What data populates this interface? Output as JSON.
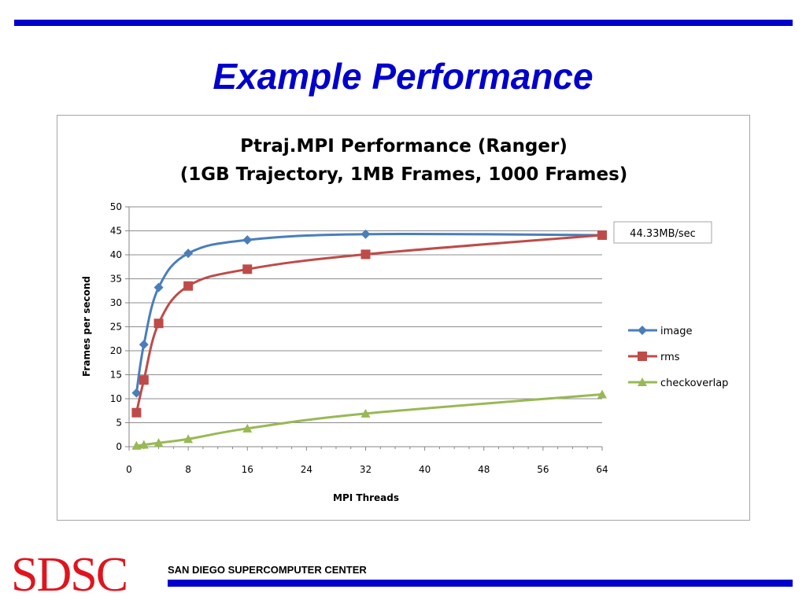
{
  "slide": {
    "title": "Example Performance",
    "footer_logo": "SDSC",
    "footer_org": "SAN DIEGO SUPERCOMPUTER CENTER",
    "accent_color": "#0000cc",
    "logo_color": "#e0141e"
  },
  "chart_data": {
    "type": "line",
    "title": "Ptraj.MPI Performance (Ranger)",
    "subtitle": "(1GB Trajectory, 1MB Frames, 1000 Frames)",
    "xlabel": "MPI Threads",
    "ylabel": "Frames per second",
    "xlim": [
      0,
      64
    ],
    "ylim": [
      0,
      50
    ],
    "xticks": [
      0,
      8,
      16,
      24,
      32,
      40,
      48,
      56,
      64
    ],
    "yticks": [
      0,
      5,
      10,
      15,
      20,
      25,
      30,
      35,
      40,
      45,
      50
    ],
    "grid": "horizontal",
    "legend_position": "right",
    "series": [
      {
        "name": "image",
        "color": "#4a7ebb",
        "marker": "diamond",
        "x": [
          1,
          2,
          4,
          8,
          16,
          32,
          64
        ],
        "y": [
          11.2,
          21.3,
          33.2,
          40.3,
          43.1,
          44.3,
          44.1
        ]
      },
      {
        "name": "rms",
        "color": "#be4b48",
        "marker": "square",
        "x": [
          1,
          2,
          4,
          8,
          16,
          32,
          64
        ],
        "y": [
          7.1,
          13.9,
          25.7,
          33.5,
          37.0,
          40.1,
          44.1
        ]
      },
      {
        "name": "checkoverlap",
        "color": "#98b954",
        "marker": "triangle",
        "x": [
          1,
          2,
          4,
          8,
          16,
          32,
          64
        ],
        "y": [
          0.2,
          0.4,
          0.8,
          1.6,
          3.8,
          6.9,
          10.9
        ]
      }
    ],
    "annotation": {
      "text": "44.33MB/sec",
      "x": 64,
      "y": 44.1
    }
  }
}
